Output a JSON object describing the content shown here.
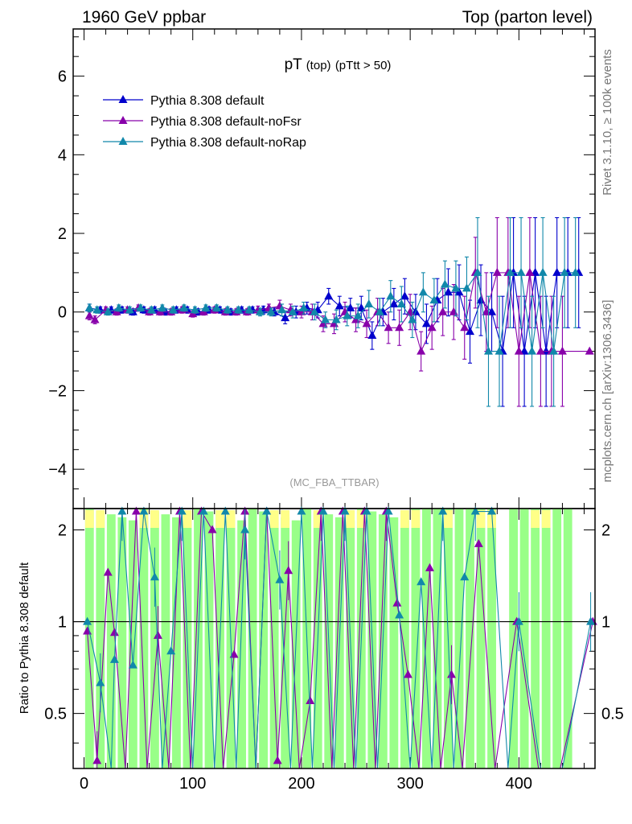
{
  "header": {
    "left": "1960 GeV ppbar",
    "right": "Top (parton level)"
  },
  "side_labels": {
    "rivet": "Rivet 3.1.10, ≥ 100k events",
    "mcplots": "mcplots.cern.ch [arXiv:1306.3436]"
  },
  "chart_data": [
    {
      "type": "line",
      "panel": "main",
      "title": "pT",
      "title_sub": "(top)",
      "title_cut": "(pTtt > 50)",
      "watermark": "(MC_FBA_TTBAR)",
      "xlim": [
        -10,
        470
      ],
      "ylim": [
        -5,
        7.2
      ],
      "yticks": [
        -4,
        -2,
        0,
        2,
        4,
        6
      ],
      "ytick_labels": [
        "−4",
        "−2",
        "0",
        "2",
        "4",
        "6"
      ],
      "legend": [
        "Pythia 8.308 default",
        "Pythia 8.308 default-noFsr",
        "Pythia 8.308 default-noRap"
      ],
      "series": [
        {
          "name": "Pythia 8.308 default",
          "color": "#0000cc",
          "x": [
            5,
            15,
            25,
            35,
            45,
            55,
            65,
            75,
            85,
            95,
            105,
            115,
            125,
            135,
            145,
            155,
            165,
            175,
            185,
            195,
            205,
            215,
            225,
            235,
            245,
            255,
            265,
            275,
            285,
            295,
            305,
            315,
            325,
            335,
            345,
            355,
            365,
            375,
            385,
            395,
            405,
            415,
            425,
            435,
            445,
            455
          ],
          "y": [
            0.1,
            0.05,
            0.05,
            0.05,
            0.0,
            0.05,
            0.05,
            0.0,
            0.05,
            0.05,
            0.0,
            0.05,
            0.05,
            0.0,
            0.05,
            0.05,
            0.05,
            0.0,
            -0.15,
            0.0,
            0.1,
            0.05,
            0.4,
            0.15,
            0.1,
            0.1,
            -0.6,
            0.0,
            0.2,
            0.4,
            0.0,
            -0.3,
            0.3,
            0.5,
            0.5,
            -0.5,
            0.3,
            0.0,
            -1.0,
            1.0,
            -1.0,
            1.0,
            -1.0,
            1.0,
            1.0,
            1.0
          ],
          "err": [
            0.1,
            0.08,
            0.08,
            0.08,
            0.08,
            0.08,
            0.08,
            0.08,
            0.08,
            0.08,
            0.08,
            0.08,
            0.08,
            0.08,
            0.08,
            0.08,
            0.1,
            0.1,
            0.15,
            0.15,
            0.15,
            0.2,
            0.2,
            0.25,
            0.25,
            0.3,
            0.35,
            0.35,
            0.4,
            0.45,
            0.45,
            0.5,
            0.55,
            0.6,
            0.7,
            0.8,
            0.9,
            1.0,
            1.4,
            1.4,
            1.4,
            1.4,
            1.4,
            1.4,
            1.4,
            1.4
          ]
        },
        {
          "name": "Pythia 8.308 default-noFsr",
          "color": "#8800aa",
          "x": [
            5,
            10,
            20,
            30,
            40,
            50,
            60,
            70,
            80,
            90,
            100,
            110,
            120,
            130,
            140,
            150,
            160,
            170,
            180,
            190,
            200,
            210,
            220,
            230,
            240,
            250,
            260,
            270,
            280,
            290,
            300,
            310,
            320,
            330,
            340,
            350,
            360,
            370,
            380,
            390,
            400,
            410,
            420,
            430,
            440,
            465
          ],
          "y": [
            -0.1,
            -0.2,
            0.05,
            0.0,
            0.05,
            0.1,
            0.0,
            0.0,
            0.0,
            0.05,
            -0.05,
            0.0,
            0.05,
            0.0,
            0.0,
            0.0,
            0.05,
            0.1,
            0.15,
            0.05,
            0.0,
            0.0,
            -0.3,
            -0.3,
            0.0,
            -0.2,
            -0.3,
            0.0,
            -0.4,
            -0.4,
            0.0,
            -1.0,
            -0.4,
            0.0,
            0.0,
            -0.4,
            1.0,
            0.0,
            1.0,
            1.0,
            -1.0,
            1.0,
            -1.0,
            -1.0,
            -1.0,
            -1.0
          ],
          "err": [
            0.1,
            0.1,
            0.08,
            0.08,
            0.08,
            0.08,
            0.08,
            0.08,
            0.08,
            0.08,
            0.08,
            0.08,
            0.08,
            0.08,
            0.08,
            0.08,
            0.1,
            0.1,
            0.15,
            0.15,
            0.15,
            0.2,
            0.2,
            0.25,
            0.25,
            0.3,
            0.35,
            0.35,
            0.4,
            0.45,
            0.45,
            0.5,
            0.55,
            0.6,
            0.7,
            0.8,
            0.9,
            1.0,
            1.4,
            1.4,
            1.4,
            1.4,
            1.4,
            1.4,
            1.4,
            0.0
          ]
        },
        {
          "name": "Pythia 8.308 default-noRap",
          "color": "#1188aa",
          "x": [
            5,
            12,
            22,
            32,
            42,
            52,
            62,
            72,
            82,
            92,
            102,
            112,
            122,
            132,
            142,
            152,
            162,
            172,
            182,
            192,
            202,
            212,
            222,
            232,
            242,
            252,
            262,
            272,
            282,
            292,
            302,
            312,
            322,
            332,
            342,
            352,
            362,
            372,
            382,
            392,
            402,
            412,
            422,
            432,
            442,
            452
          ],
          "y": [
            0.1,
            0.05,
            0.0,
            0.1,
            0.05,
            0.1,
            0.05,
            0.1,
            0.05,
            0.1,
            0.05,
            0.1,
            0.1,
            0.05,
            0.05,
            0.05,
            0.0,
            0.0,
            0.05,
            0.0,
            0.1,
            0.0,
            -0.2,
            -0.2,
            -0.1,
            -0.1,
            0.2,
            0.0,
            0.4,
            0.2,
            -0.2,
            0.5,
            0.3,
            0.7,
            0.6,
            0.6,
            1.0,
            -1.0,
            -1.0,
            1.0,
            1.0,
            -1.0,
            1.0,
            -1.0,
            1.0,
            1.0
          ],
          "err": [
            0.1,
            0.08,
            0.08,
            0.08,
            0.08,
            0.08,
            0.08,
            0.08,
            0.08,
            0.08,
            0.08,
            0.08,
            0.08,
            0.08,
            0.08,
            0.08,
            0.1,
            0.1,
            0.15,
            0.15,
            0.15,
            0.2,
            0.2,
            0.25,
            0.25,
            0.3,
            0.35,
            0.35,
            0.4,
            0.45,
            0.45,
            0.5,
            0.55,
            0.6,
            0.7,
            0.8,
            1.4,
            1.4,
            1.4,
            1.4,
            1.4,
            1.4,
            1.4,
            1.4,
            1.4,
            1.4
          ]
        }
      ]
    },
    {
      "type": "line",
      "panel": "ratio",
      "ylabel": "Ratio to Pythia 8.308 default",
      "ylim": [
        0.33,
        2.35
      ],
      "yticks": [
        0.5,
        1,
        2
      ],
      "ytick_labels": [
        "0.5",
        "1",
        "2"
      ],
      "xlim": [
        -10,
        470
      ],
      "xticks": [
        0,
        100,
        200,
        300,
        400
      ],
      "xtick_labels": [
        "0",
        "100",
        "200",
        "300",
        "400"
      ],
      "reference": 1,
      "band_color_inner": "#99ff88",
      "band_color_outer": "#ffff88",
      "series": [
        {
          "name": "Pythia 8.308 default-noFsr",
          "color": "#8800aa",
          "x": [
            3,
            12,
            22,
            28,
            38,
            48,
            58,
            68,
            78,
            88,
            98,
            108,
            118,
            128,
            138,
            148,
            158,
            168,
            178,
            188,
            198,
            208,
            218,
            228,
            238,
            248,
            258,
            268,
            278,
            288,
            298,
            308,
            318,
            328,
            338,
            348,
            363,
            378,
            398,
            418,
            438,
            468
          ],
          "y": [
            0.93,
            0.35,
            1.45,
            0.92,
            0.3,
            2.3,
            0.3,
            0.9,
            0.3,
            2.3,
            0.3,
            2.3,
            2.0,
            0.3,
            0.78,
            2.3,
            0.3,
            2.3,
            0.35,
            1.47,
            0.3,
            0.55,
            2.3,
            0.3,
            2.3,
            0.3,
            2.3,
            0.3,
            2.3,
            1.15,
            0.67,
            0.3,
            1.5,
            0.3,
            0.67,
            0.3,
            1.8,
            0.3,
            1.0,
            0.3,
            0.3,
            1.0
          ]
        },
        {
          "name": "Pythia 8.308 default-noRap",
          "color": "#1188aa",
          "x": [
            3,
            15,
            25,
            28,
            35,
            45,
            55,
            65,
            72,
            80,
            90,
            100,
            110,
            120,
            130,
            140,
            148,
            158,
            168,
            180,
            190,
            200,
            210,
            220,
            230,
            240,
            250,
            260,
            270,
            280,
            290,
            300,
            310,
            320,
            330,
            340,
            350,
            360,
            375,
            390,
            400,
            420,
            440,
            466
          ],
          "y": [
            1.0,
            0.63,
            0.3,
            0.75,
            2.3,
            0.72,
            2.3,
            1.4,
            0.3,
            0.8,
            2.3,
            0.3,
            2.3,
            0.3,
            2.3,
            0.3,
            2.0,
            0.3,
            2.3,
            1.37,
            0.3,
            2.3,
            0.3,
            2.3,
            0.3,
            2.3,
            0.3,
            2.3,
            0.3,
            2.3,
            1.05,
            0.3,
            1.35,
            0.3,
            2.3,
            0.3,
            1.4,
            2.3,
            2.3,
            0.3,
            1.0,
            0.3,
            0.3,
            1.0
          ]
        }
      ]
    }
  ]
}
